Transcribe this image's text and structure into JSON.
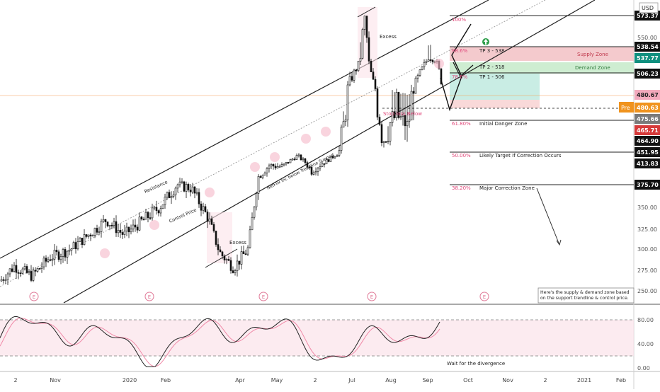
{
  "chart_data": {
    "type": "candlestick",
    "instrument_currency": "USD",
    "price_ticks": [
      "550.00",
      "325.00",
      "350.00",
      "300.00",
      "275.00",
      "250.00"
    ],
    "price_tick_values": [
      550,
      325,
      350,
      300,
      275,
      250
    ],
    "price_labels": [
      {
        "text": "573.37",
        "value": 573.37,
        "style": "black"
      },
      {
        "text": "538.54",
        "value": 538.54,
        "style": "black"
      },
      {
        "text": "537.77",
        "value": 537.77,
        "style": "teal"
      },
      {
        "text": "506.23",
        "value": 506.23,
        "style": "black"
      },
      {
        "text": "480.67",
        "value": 480.67,
        "style": "pink"
      },
      {
        "text": "480.63",
        "value": 480.63,
        "style": "orange"
      },
      {
        "text": "475.66",
        "value": 475.66,
        "style": "gray"
      },
      {
        "text": "465.71",
        "value": 465.71,
        "style": "red"
      },
      {
        "text": "464.90",
        "value": 464.9,
        "style": "black"
      },
      {
        "text": "451.95",
        "value": 451.95,
        "style": "black"
      },
      {
        "text": "413.83",
        "value": 413.83,
        "style": "black"
      },
      {
        "text": "375.70",
        "value": 375.7,
        "style": "black"
      }
    ],
    "pre_badge": "Pre",
    "time_ticks": [
      {
        "label": "2",
        "pos": 0.0
      },
      {
        "label": "Nov",
        "pos": 1.0
      },
      {
        "label": "2020",
        "pos": 3.0
      },
      {
        "label": "Feb",
        "pos": 4.0
      },
      {
        "label": "Apr",
        "pos": 6.0
      },
      {
        "label": "May",
        "pos": 7.0
      },
      {
        "label": "2",
        "pos": 8.0
      },
      {
        "label": "Jul",
        "pos": 9.0
      },
      {
        "label": "Aug",
        "pos": 10.0
      },
      {
        "label": "Sep",
        "pos": 11.0
      },
      {
        "label": "Oct",
        "pos": 12.0
      },
      {
        "label": "Nov",
        "pos": 13.0
      },
      {
        "label": "2",
        "pos": 14.0
      },
      {
        "label": "2021",
        "pos": 15.0
      },
      {
        "label": "Feb",
        "pos": 16.0
      }
    ],
    "earnings_markers": [
      "E",
      "E",
      "E",
      "E",
      "E"
    ],
    "fib_levels": [
      {
        "pct": "100%",
        "value": 573.37
      },
      {
        "pct": "88.6%",
        "value": 538.54,
        "label": "TP 3 - 538"
      },
      {
        "pct": "78.6%",
        "value": 506.23,
        "label": "TP 1 - 506"
      },
      {
        "pct": "61.80%",
        "value": 464.9,
        "label": "Initial Danger Zone"
      },
      {
        "pct": "50.00%",
        "value": 413.83,
        "label": "Likely Target If Correction Occurs"
      },
      {
        "pct": "38.20%",
        "value": 375.7,
        "label": "Major Correction Zone"
      }
    ],
    "tp2_label": "TP 2 - 518",
    "zones": {
      "supply": {
        "label": "Supply Zone",
        "top": 553,
        "bottom": 538
      },
      "demand": {
        "label": "Demand Zone",
        "top": 523,
        "bottom": 506
      }
    },
    "annotations": {
      "excess_top": "Excess",
      "excess_bottom": "Excess",
      "resistance": "Resistance",
      "control_price": "Control Price",
      "support": "NetFlix Inc below Trendline Support",
      "stop_loss": "Stop loss Below",
      "note": "Here's the supply & demand zone based on the support trendline & control price.",
      "divergence": "Wait for the divergence"
    },
    "oscillator": {
      "ticks": [
        "80.00",
        "40.00",
        "0.00"
      ],
      "tick_values": [
        80,
        40,
        0
      ],
      "upper_band": 80,
      "lower_band": 20
    }
  }
}
